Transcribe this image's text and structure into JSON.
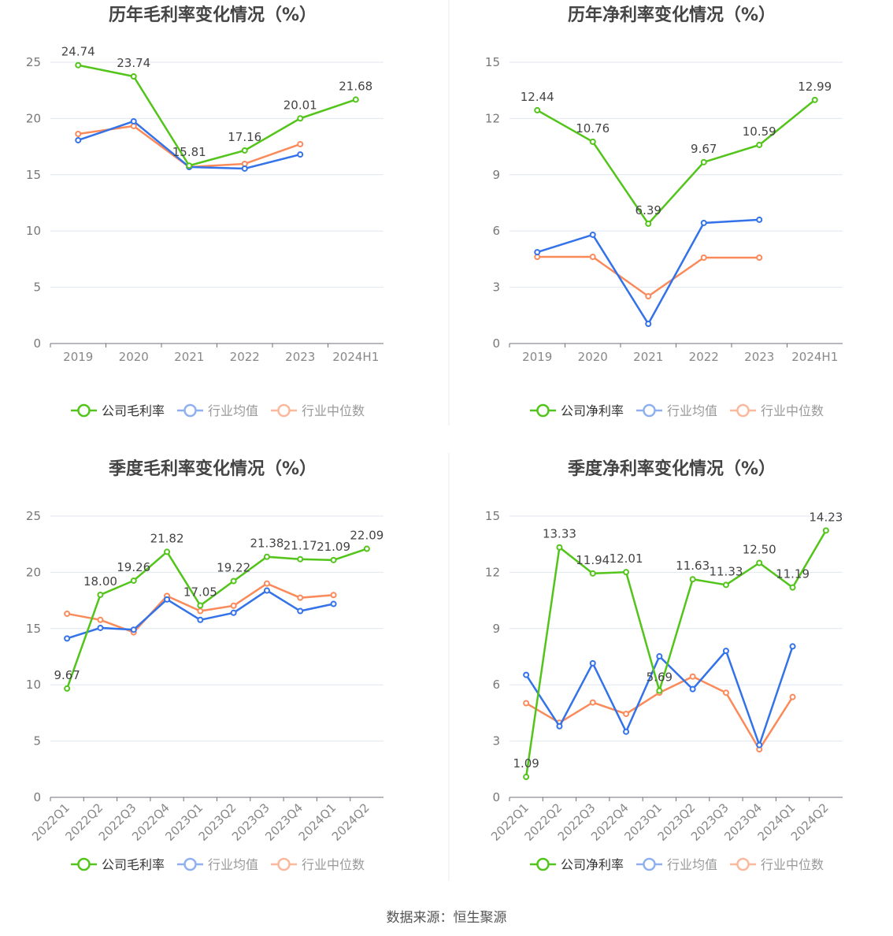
{
  "source": "数据来源：恒生聚源",
  "colors": {
    "company": "#52c41a",
    "avg": "#3372e8",
    "median": "#fa8a5a",
    "legend_avg": "#8fb0f0",
    "legend_median": "#fbb89c"
  },
  "chart_data": [
    {
      "type": "line",
      "title": "历年毛利率变化情况（%）",
      "categories": [
        "2019",
        "2020",
        "2021",
        "2022",
        "2023",
        "2024H1"
      ],
      "ylim": [
        0,
        25
      ],
      "yticks": [
        0,
        5,
        10,
        15,
        20,
        25
      ],
      "grid": true,
      "legend": "bottom",
      "series": [
        {
          "name": "公司毛利率",
          "values": [
            24.74,
            23.74,
            15.81,
            17.16,
            20.01,
            21.68
          ],
          "labels": [
            "24.74",
            "23.74",
            "15.81",
            "17.16",
            "20.01",
            "21.68"
          ]
        },
        {
          "name": "行业均值",
          "values": [
            18.07,
            19.75,
            15.69,
            15.55,
            16.8,
            null
          ]
        },
        {
          "name": "行业中位数",
          "values": [
            18.63,
            19.33,
            15.69,
            15.97,
            17.72,
            null
          ]
        }
      ]
    },
    {
      "type": "line",
      "title": "历年净利率变化情况（%）",
      "categories": [
        "2019",
        "2020",
        "2021",
        "2022",
        "2023",
        "2024H1"
      ],
      "ylim": [
        0,
        15
      ],
      "yticks": [
        0,
        3,
        6,
        9,
        12,
        15
      ],
      "grid": true,
      "legend": "bottom",
      "series": [
        {
          "name": "公司净利率",
          "values": [
            12.44,
            10.76,
            6.39,
            9.67,
            10.59,
            12.99
          ],
          "labels": [
            "12.44",
            "10.76",
            "6.39",
            "9.67",
            "10.59",
            "12.99"
          ]
        },
        {
          "name": "行业均值",
          "values": [
            4.87,
            5.8,
            1.05,
            6.43,
            6.6,
            null
          ]
        },
        {
          "name": "行业中位数",
          "values": [
            4.62,
            4.62,
            2.52,
            4.58,
            4.58,
            null
          ]
        }
      ]
    },
    {
      "type": "line",
      "title": "季度毛利率变化情况（%）",
      "categories": [
        "2022Q1",
        "2022Q2",
        "2022Q3",
        "2022Q4",
        "2023Q1",
        "2023Q2",
        "2023Q3",
        "2023Q4",
        "2024Q1",
        "2024Q2"
      ],
      "ylim": [
        0,
        25
      ],
      "yticks": [
        0,
        5,
        10,
        15,
        20,
        25
      ],
      "grid": true,
      "legend": "bottom",
      "series": [
        {
          "name": "公司毛利率",
          "values": [
            9.67,
            18.0,
            19.26,
            21.82,
            17.05,
            19.22,
            21.38,
            21.17,
            21.09,
            22.09
          ],
          "labels": [
            "9.67",
            "18.00",
            "19.26",
            "21.82",
            "17.05",
            "19.22",
            "21.38",
            "21.17",
            "21.09",
            "22.09"
          ]
        },
        {
          "name": "行业均值",
          "values": [
            14.12,
            15.06,
            14.9,
            17.59,
            15.77,
            16.4,
            18.38,
            16.56,
            17.19,
            null
          ]
        },
        {
          "name": "行业中位数",
          "values": [
            16.32,
            15.77,
            14.67,
            17.9,
            16.56,
            17.03,
            19.0,
            17.74,
            17.98,
            null
          ]
        }
      ]
    },
    {
      "type": "line",
      "title": "季度净利率变化情况（%）",
      "categories": [
        "2022Q1",
        "2022Q2",
        "2022Q3",
        "2022Q4",
        "2023Q1",
        "2023Q2",
        "2023Q3",
        "2023Q4",
        "2024Q1",
        "2024Q2"
      ],
      "ylim": [
        0,
        15
      ],
      "yticks": [
        0,
        3,
        6,
        9,
        12,
        15
      ],
      "grid": true,
      "legend": "bottom",
      "series": [
        {
          "name": "公司净利率",
          "values": [
            1.09,
            13.33,
            11.94,
            12.01,
            5.69,
            11.63,
            11.33,
            12.5,
            11.19,
            14.23
          ],
          "labels": [
            "1.09",
            "13.33",
            "11.94",
            "12.01",
            "5.69",
            "11.63",
            "11.33",
            "12.50",
            "11.19",
            "14.23"
          ]
        },
        {
          "name": "行业均值",
          "values": [
            6.53,
            3.79,
            7.15,
            3.5,
            7.52,
            5.77,
            7.81,
            2.79,
            8.05,
            null
          ]
        },
        {
          "name": "行业中位数",
          "values": [
            5.02,
            3.98,
            5.06,
            4.45,
            5.58,
            6.44,
            5.58,
            2.56,
            5.35,
            null
          ]
        }
      ]
    }
  ]
}
